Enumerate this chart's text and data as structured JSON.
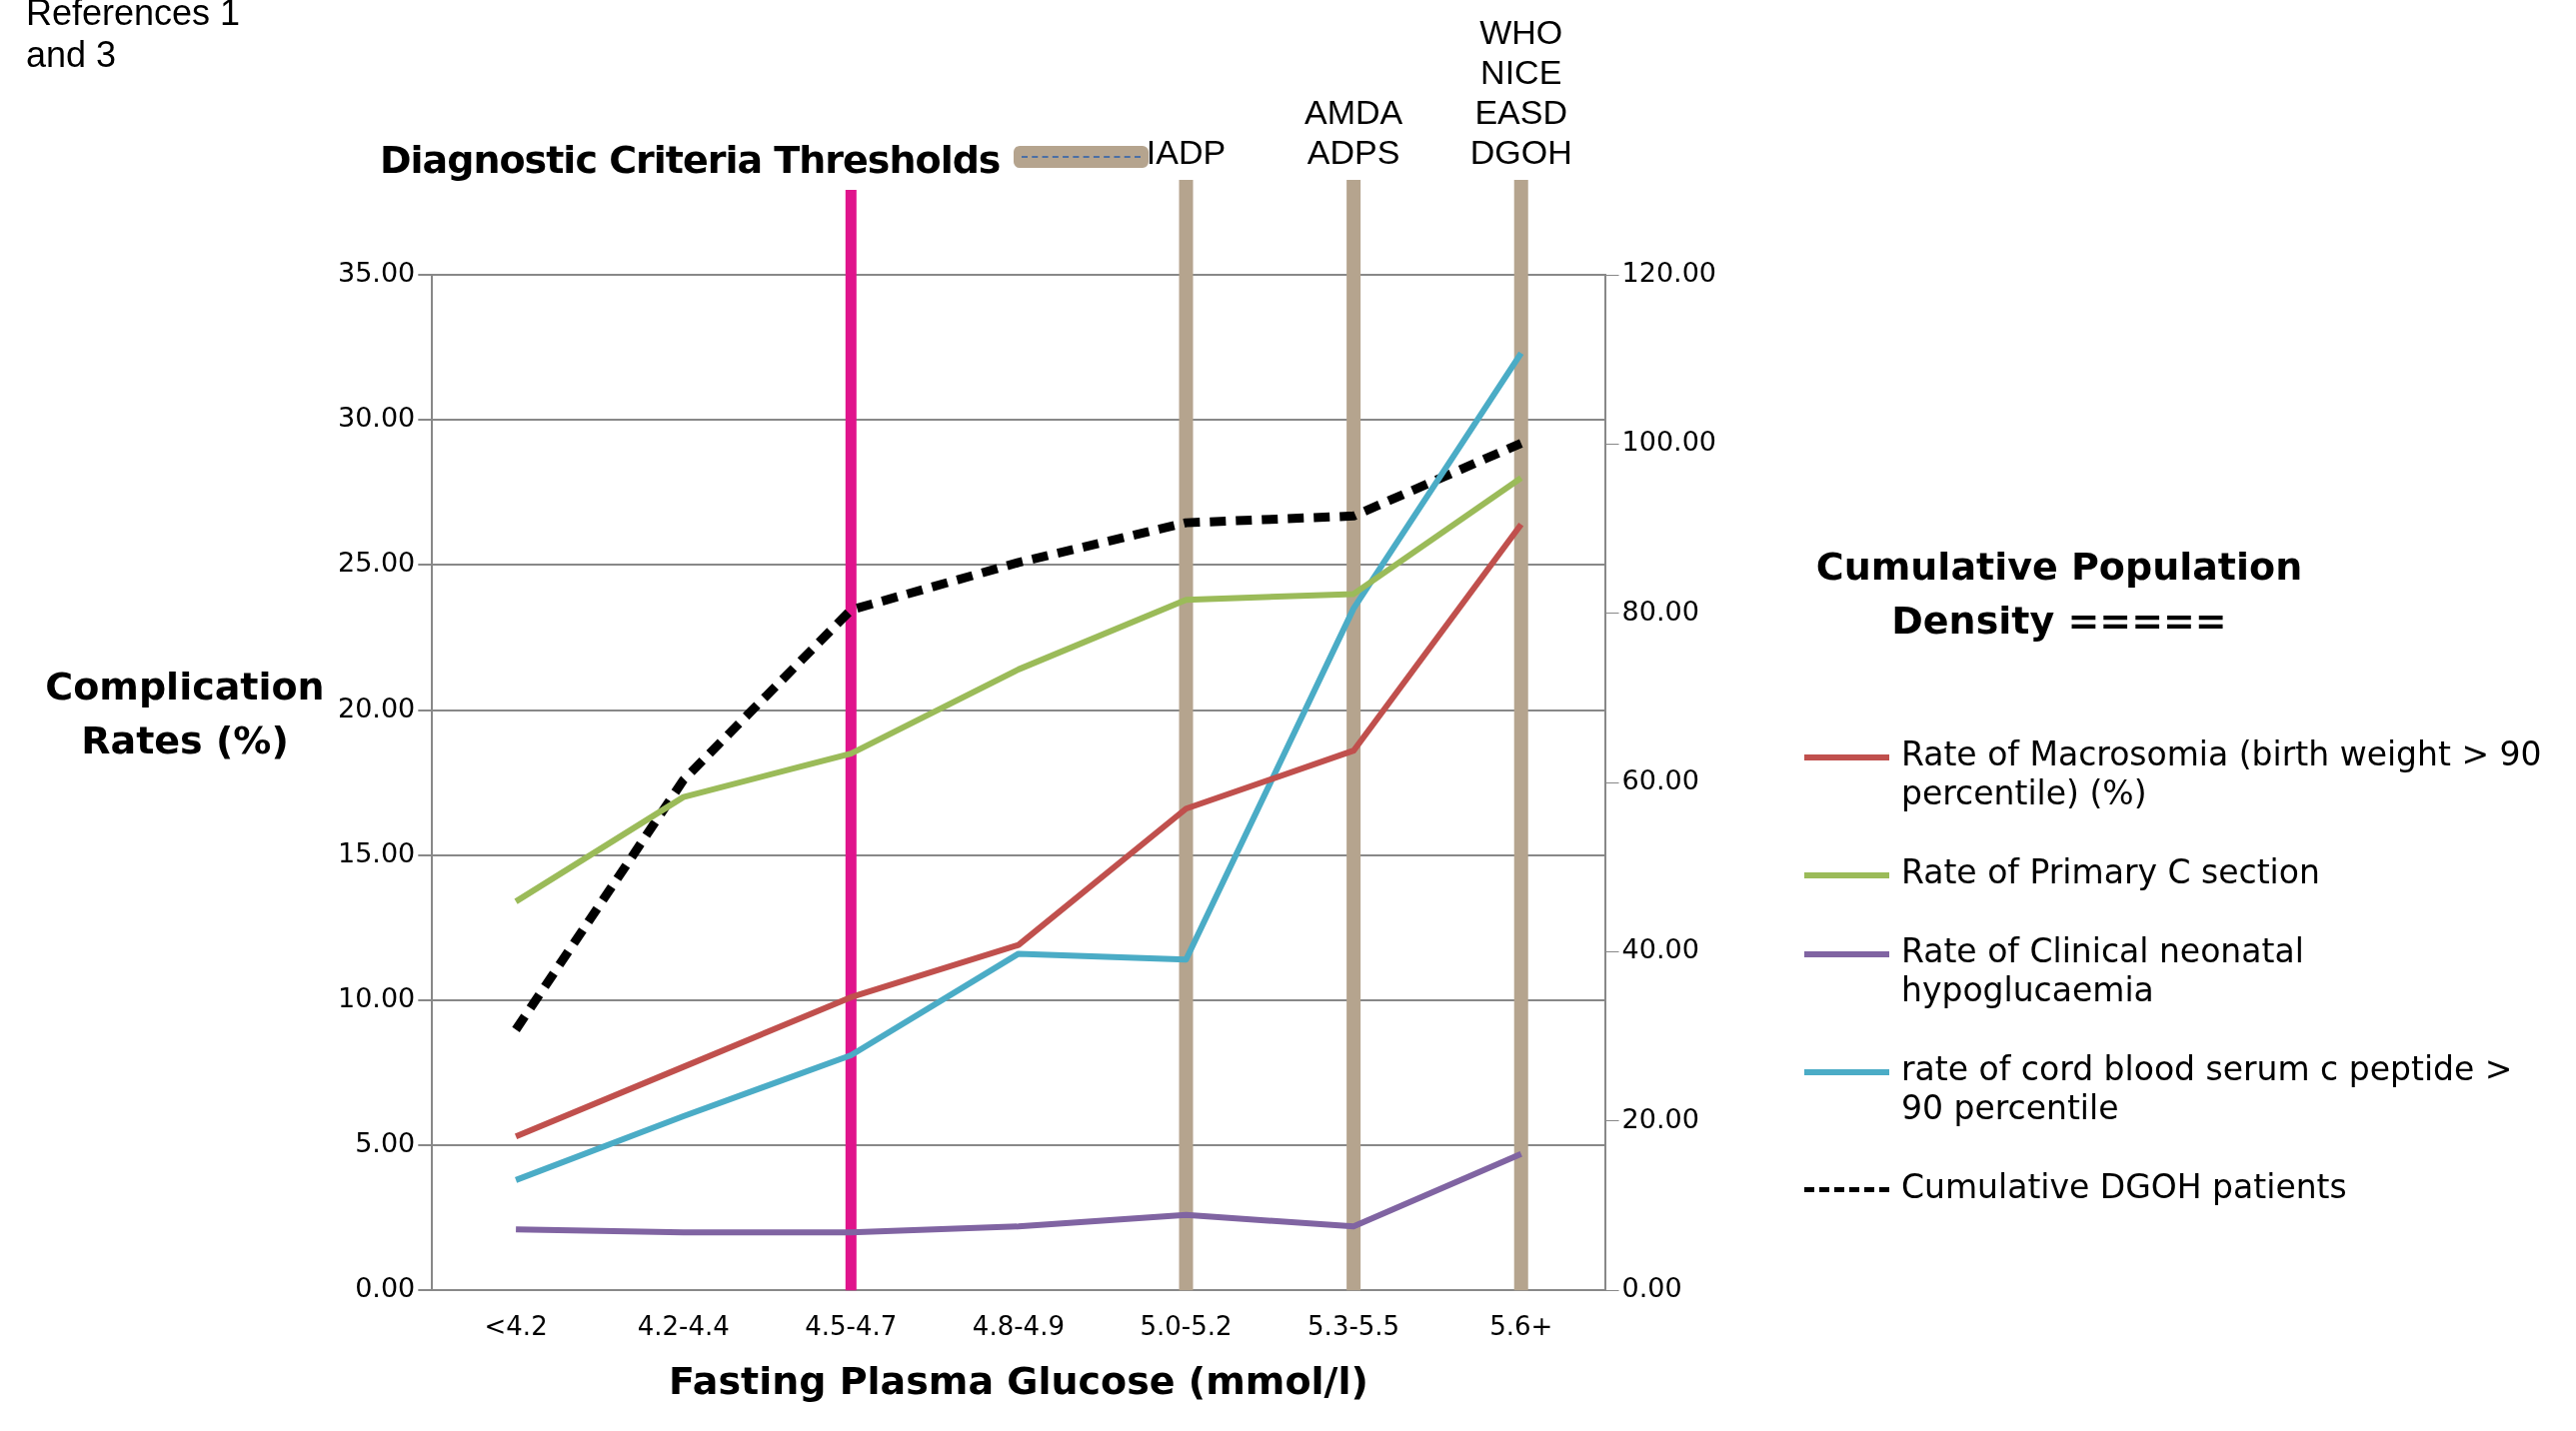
{
  "chart_data": {
    "type": "line",
    "xlabel": "Fasting Plasma Glucose (mmol/l)",
    "ylabel": "Complication Rates (%)",
    "y2label": "Cumulative Population Density =====",
    "annotations": [
      "References 1\nand 3",
      "Diagnostic Criteria Thresholds"
    ],
    "categories": [
      "<4.2",
      "4.2-4.4",
      "4.5-4.7",
      "4.8-4.9",
      "5.0-5.2",
      "5.3-5.5",
      "5.6+"
    ],
    "series": [
      {
        "name": "Rate of Macrosomia (birth weight > 90 percentile) (%)",
        "color": "#c0504d",
        "values": [
          5.3,
          7.7,
          10.1,
          11.9,
          16.6,
          18.6,
          26.4
        ]
      },
      {
        "name": "Rate of Primary C section",
        "color": "#9bbb59",
        "values": [
          13.4,
          17.0,
          18.5,
          21.4,
          23.8,
          24.0,
          28.0
        ]
      },
      {
        "name": "Rate of Clinical neonatal hypoglucaemia",
        "color": "#8064a2",
        "values": [
          2.1,
          2.0,
          2.0,
          2.2,
          2.6,
          2.2,
          4.7
        ]
      },
      {
        "name": "rate of cord blood serum c peptide > 90 percentile",
        "color": "#4bacc6",
        "values": [
          3.8,
          6.0,
          8.1,
          11.6,
          11.4,
          23.5,
          32.3
        ]
      },
      {
        "name": "Cumulative DGOH patients",
        "color": "#000000",
        "axis": "y2",
        "line_style": "dashed",
        "values": [
          30.8,
          60.3,
          80.4,
          86.0,
          90.7,
          91.5,
          100.1
        ]
      }
    ],
    "ylim": [
      0,
      35
    ],
    "yticks": [
      {
        "value": 0,
        "label": "0.00"
      },
      {
        "value": 5,
        "label": "5.00"
      },
      {
        "value": 10,
        "label": "10.00"
      },
      {
        "value": 15,
        "label": "15.00"
      },
      {
        "value": 20,
        "label": "20.00"
      },
      {
        "value": 25,
        "label": "25.00"
      },
      {
        "value": 30,
        "label": "30.00"
      },
      {
        "value": 35,
        "label": "35.00"
      }
    ],
    "y2lim": [
      0,
      120
    ],
    "y2ticks": [
      {
        "value": 0,
        "label": "0.00"
      },
      {
        "value": 20,
        "label": "20.00"
      },
      {
        "value": 40,
        "label": "40.00"
      },
      {
        "value": 60,
        "label": "60.00"
      },
      {
        "value": 80,
        "label": "80.00"
      },
      {
        "value": 100,
        "label": "100.00"
      },
      {
        "value": 120,
        "label": "120.00"
      }
    ],
    "ref_lines": [
      {
        "axis": "x",
        "value": "4.5-4.7",
        "color": "#e0148c",
        "line_style": "solid"
      },
      {
        "axis": "x",
        "value": "5.0-5.2",
        "label": "IADP",
        "color": "#b5a48e",
        "line_style": "solid"
      },
      {
        "axis": "x",
        "value": "5.3-5.5",
        "label": "AMDA\nADPS",
        "color": "#b5a48e",
        "line_style": "solid"
      },
      {
        "axis": "x",
        "value": "5.6+",
        "label": "WHO\nNICE\nEASD\nDGOH",
        "color": "#b5a48e",
        "line_style": "solid"
      }
    ],
    "grid": "y",
    "legend": "right",
    "marker": "none"
  }
}
